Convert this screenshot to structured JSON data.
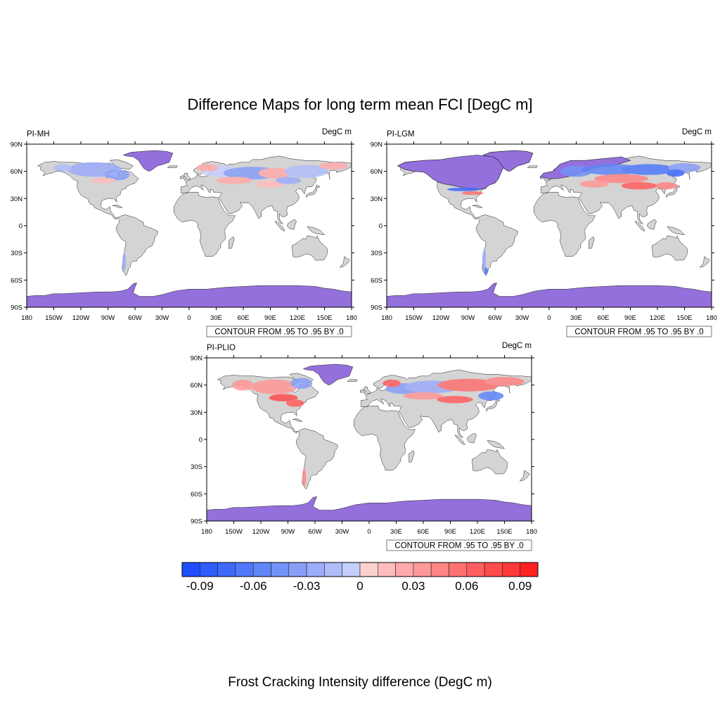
{
  "title": "Difference Maps for long term mean FCI [DegC m]",
  "colorbar_title": "Frost Cracking Intensity difference (DegC m)",
  "lat_ticks": [
    "90N",
    "60N",
    "30N",
    "0",
    "30S",
    "60S",
    "90S"
  ],
  "lon_ticks": [
    "180",
    "150W",
    "120W",
    "90W",
    "60W",
    "30W",
    "0",
    "30E",
    "60E",
    "90E",
    "120E",
    "150E",
    "180"
  ],
  "panels": [
    {
      "name": "PI-MH",
      "units": "DegC m",
      "info": "CONTOUR FROM .95 TO .95 BY .0",
      "north_ice": "greenland"
    },
    {
      "name": "PI-LGM",
      "units": "DegC m",
      "info": "CONTOUR FROM .95 TO .95 BY .0",
      "north_ice": "laurentide"
    },
    {
      "name": "PI-PLIO",
      "units": "DegC m",
      "info": "CONTOUR FROM .95 TO .95 BY .0",
      "north_ice": "greenland"
    }
  ],
  "colorbar": {
    "labels": [
      "-0.09",
      "-0.06",
      "-0.03",
      "0",
      "0.03",
      "0.06",
      "0.09"
    ],
    "label_values": [
      -0.09,
      -0.06,
      -0.03,
      0,
      0.03,
      0.06,
      0.09
    ],
    "colors": [
      "#1f4fff",
      "#2f5cfd",
      "#3f69fb",
      "#5079fa",
      "#6086f9",
      "#7493f8",
      "#889ff8",
      "#9cadf9",
      "#b0bdfa",
      "#c6cefc",
      "#ffd0d0",
      "#ffbcbc",
      "#ffaaaa",
      "#ff9898",
      "#ff8585",
      "#ff7171",
      "#ff5f5f",
      "#ff4c4c",
      "#ff3838",
      "#ff2020"
    ]
  },
  "colors": {
    "land": "#d4d4d4",
    "ice": "#9370db",
    "positive": "#ff6a6a",
    "negative": "#5a7dff"
  }
}
